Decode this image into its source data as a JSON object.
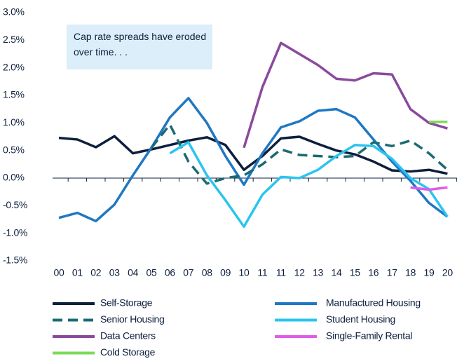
{
  "chart_data": {
    "type": "line",
    "annotation": "Cap rate spreads have eroded over time. . .",
    "categories": [
      "00",
      "01",
      "02",
      "03",
      "04",
      "05",
      "06",
      "07",
      "08",
      "09",
      "10",
      "11",
      "11",
      "12",
      "13",
      "14",
      "15",
      "16",
      "17",
      "18",
      "19",
      "20"
    ],
    "ylim": [
      -1.5,
      3.0
    ],
    "yticks": [
      {
        "value": -1.5,
        "label": "-1.5%"
      },
      {
        "value": -1.0,
        "label": "-1.0%"
      },
      {
        "value": -0.5,
        "label": "-0.5%"
      },
      {
        "value": 0.0,
        "label": "0.0%"
      },
      {
        "value": 0.5,
        "label": "0.5%"
      },
      {
        "value": 1.0,
        "label": "1.0%"
      },
      {
        "value": 1.5,
        "label": "1.5%"
      },
      {
        "value": 2.0,
        "label": "2.0%"
      },
      {
        "value": 2.5,
        "label": "2.5%"
      },
      {
        "value": 3.0,
        "label": "3.0%"
      }
    ],
    "series": [
      {
        "name": "Self-Storage",
        "color": "#0d1f3c",
        "dashed": false,
        "values": [
          0.73,
          0.7,
          0.56,
          0.76,
          0.45,
          0.52,
          0.6,
          0.68,
          0.74,
          0.6,
          0.15,
          0.4,
          0.72,
          0.75,
          0.62,
          0.5,
          0.43,
          0.3,
          0.14,
          0.12,
          0.15,
          0.08
        ]
      },
      {
        "name": "Manufactured Housing",
        "color": "#1f78c1",
        "dashed": false,
        "values": [
          -0.72,
          -0.63,
          -0.78,
          -0.48,
          0.05,
          0.55,
          1.1,
          1.45,
          1.0,
          0.4,
          -0.12,
          0.45,
          0.92,
          1.03,
          1.22,
          1.25,
          1.1,
          0.7,
          0.3,
          -0.05,
          -0.45,
          -0.7
        ]
      },
      {
        "name": "Senior Housing",
        "color": "#1a6b73",
        "dashed": true,
        "values": [
          null,
          null,
          null,
          null,
          null,
          0.55,
          0.97,
          0.3,
          -0.1,
          0.0,
          0.05,
          0.25,
          0.52,
          0.42,
          0.4,
          0.38,
          0.4,
          0.65,
          0.58,
          0.68,
          0.45,
          0.15
        ]
      },
      {
        "name": "Student Housing",
        "color": "#2bc4f0",
        "dashed": false,
        "values": [
          null,
          null,
          null,
          null,
          null,
          null,
          0.45,
          0.65,
          0.05,
          -0.4,
          -0.88,
          -0.3,
          0.02,
          0.0,
          0.15,
          0.4,
          0.6,
          0.58,
          0.35,
          0.0,
          -0.2,
          -0.7
        ]
      },
      {
        "name": "Data Centers",
        "color": "#8a4a9c",
        "dashed": false,
        "values": [
          null,
          null,
          null,
          null,
          null,
          null,
          null,
          null,
          null,
          null,
          0.55,
          1.65,
          2.45,
          2.25,
          2.05,
          1.8,
          1.77,
          1.9,
          1.88,
          1.25,
          1.0,
          0.9
        ]
      },
      {
        "name": "Single-Family Rental",
        "color": "#e05ce6",
        "dashed": false,
        "values": [
          null,
          null,
          null,
          null,
          null,
          null,
          null,
          null,
          null,
          null,
          null,
          null,
          null,
          null,
          null,
          null,
          null,
          null,
          null,
          -0.17,
          -0.21,
          -0.17
        ]
      },
      {
        "name": "Cold Storage",
        "color": "#7ed957",
        "dashed": false,
        "values": [
          null,
          null,
          null,
          null,
          null,
          null,
          null,
          null,
          null,
          null,
          null,
          null,
          null,
          null,
          null,
          null,
          null,
          null,
          null,
          null,
          1.02,
          1.02
        ]
      }
    ]
  }
}
